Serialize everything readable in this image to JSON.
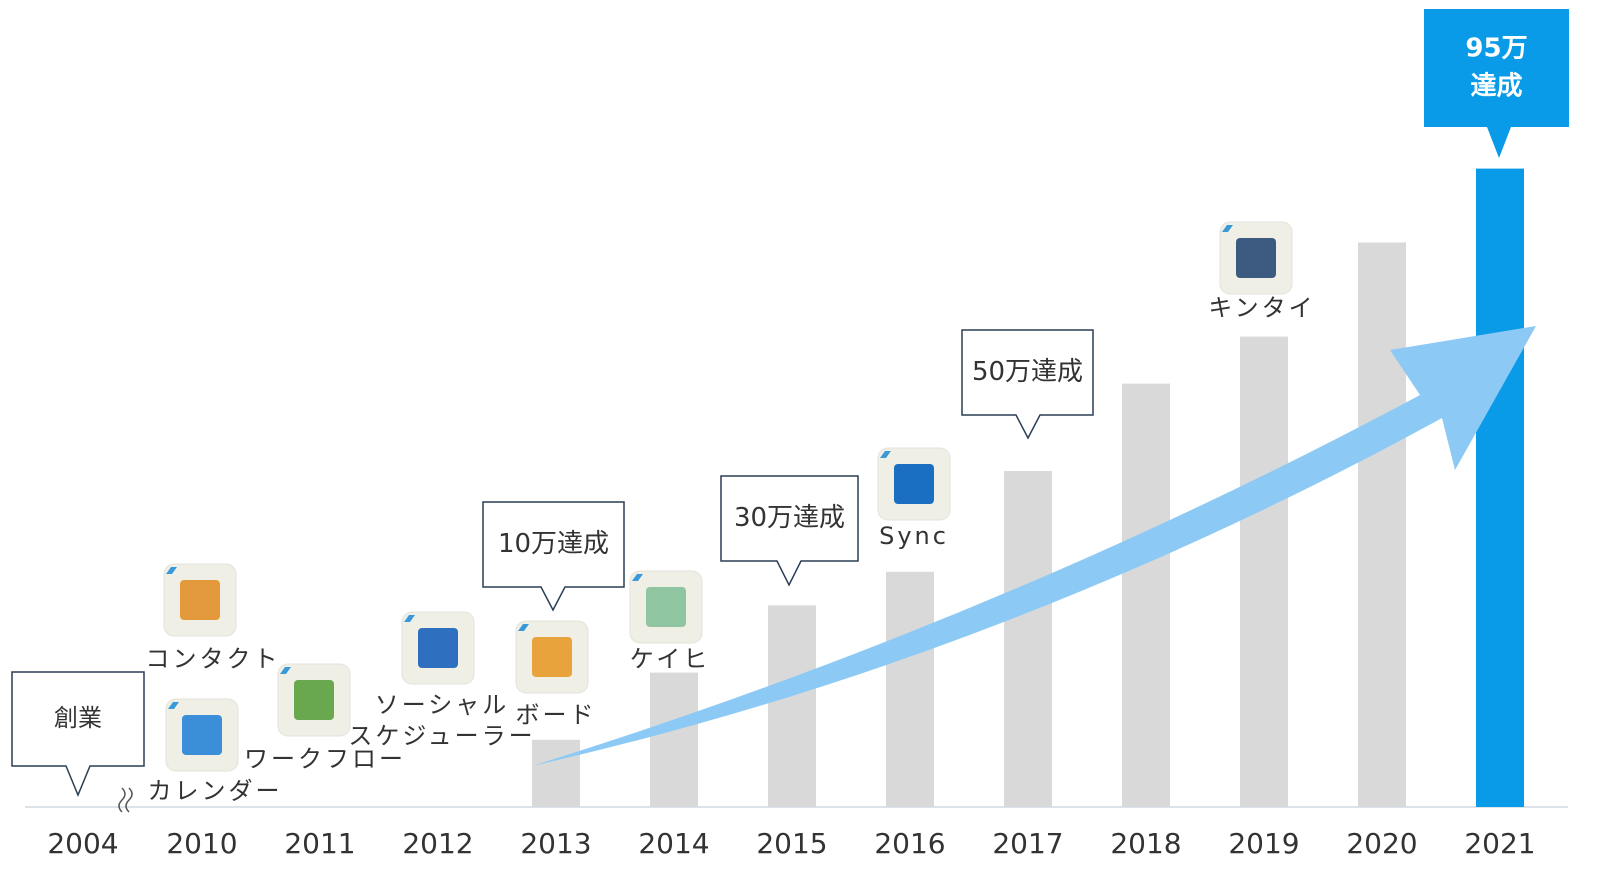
{
  "chart_data": {
    "type": "bar",
    "categories": [
      "2004",
      "2010",
      "2011",
      "2012",
      "2013",
      "2014",
      "2015",
      "2016",
      "2017",
      "2018",
      "2019",
      "2020",
      "2021"
    ],
    "values": [
      null,
      null,
      null,
      null,
      10,
      20,
      30,
      35,
      50,
      63,
      70,
      84,
      95
    ],
    "colors": [
      "#d9d9d9",
      "#d9d9d9",
      "#d9d9d9",
      "#d9d9d9",
      "#d9d9d9",
      "#d9d9d9",
      "#d9d9d9",
      "#d9d9d9",
      "#d9d9d9",
      "#d9d9d9",
      "#d9d9d9",
      "#d9d9d9",
      "#0a9be8"
    ],
    "ylim": [
      0,
      100
    ],
    "milestones": [
      {
        "x": "2004",
        "lines": [
          "創業"
        ]
      },
      {
        "x": "2013",
        "lines": [
          "10万達成"
        ]
      },
      {
        "x": "2015",
        "lines": [
          "30万達成"
        ]
      },
      {
        "x": "2017",
        "lines": [
          "50万達成"
        ]
      },
      {
        "x": "2021",
        "lines": [
          "95万",
          "達成"
        ]
      }
    ],
    "apps": [
      {
        "x": "2010",
        "lines": [
          "カレンダー"
        ]
      },
      {
        "x": "2010",
        "lines": [
          "コンタクト"
        ]
      },
      {
        "x": "2011",
        "lines": [
          "ワークフロー"
        ]
      },
      {
        "x": "2012",
        "lines": [
          "ソーシャル",
          "スケジューラー"
        ]
      },
      {
        "x": "2013",
        "lines": [
          "ボード"
        ]
      },
      {
        "x": "2014",
        "lines": [
          "ケイヒ"
        ]
      },
      {
        "x": "2016",
        "lines": [
          "Sync"
        ]
      },
      {
        "x": "2019",
        "lines": [
          "キンタイ"
        ]
      }
    ]
  }
}
